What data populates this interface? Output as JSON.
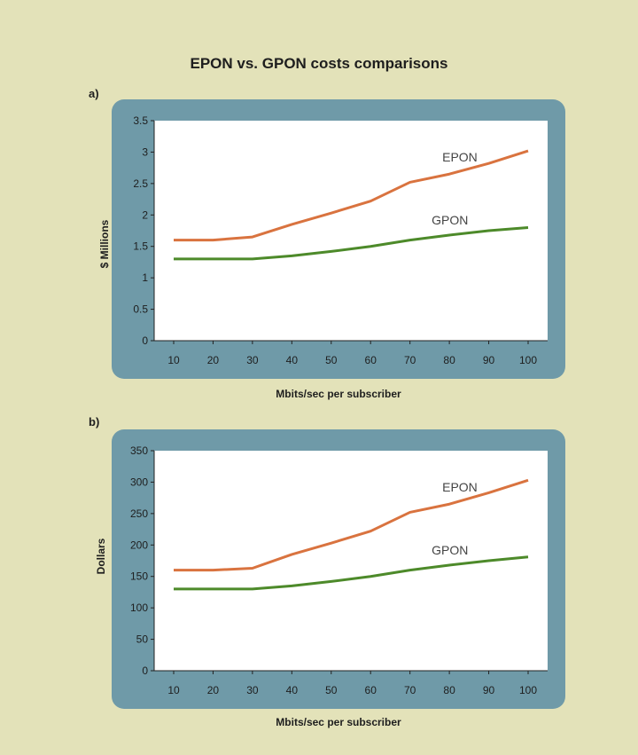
{
  "title": "EPON vs. GPON costs comparisons",
  "panels": [
    {
      "label": "a)"
    },
    {
      "label": "b)"
    }
  ],
  "colors": {
    "background": "#e3e2b9",
    "panel": "#6f9aa8",
    "plot": "#ffffff",
    "epon": "#d9733f",
    "gpon": "#4d8a2a"
  },
  "chart_data": [
    {
      "type": "line",
      "title": "",
      "xlabel": "Mbits/sec per subscriber",
      "ylabel": "$ Millions",
      "x": [
        10,
        20,
        30,
        40,
        50,
        60,
        70,
        80,
        90,
        100
      ],
      "ylim": [
        0,
        3.5
      ],
      "yticks": [
        "0",
        "0.5",
        "1",
        "1.5",
        "2",
        "2.5",
        "3",
        "3.5"
      ],
      "xticks": [
        "10",
        "20",
        "30",
        "40",
        "50",
        "60",
        "70",
        "80",
        "90",
        "100"
      ],
      "legend": "inline-labels",
      "series": [
        {
          "name": "EPON",
          "values": [
            1.6,
            1.6,
            1.65,
            1.85,
            2.03,
            2.22,
            2.52,
            2.65,
            2.82,
            3.02
          ]
        },
        {
          "name": "GPON",
          "values": [
            1.3,
            1.3,
            1.3,
            1.35,
            1.42,
            1.5,
            1.6,
            1.68,
            1.75,
            1.8
          ]
        }
      ]
    },
    {
      "type": "line",
      "title": "",
      "xlabel": "Mbits/sec per subscriber",
      "ylabel": "Dollars",
      "x": [
        10,
        20,
        30,
        40,
        50,
        60,
        70,
        80,
        90,
        100
      ],
      "ylim": [
        0,
        350
      ],
      "yticks": [
        "0",
        "50",
        "100",
        "150",
        "200",
        "250",
        "300",
        "350"
      ],
      "xticks": [
        "10",
        "20",
        "30",
        "40",
        "50",
        "60",
        "70",
        "80",
        "90",
        "100"
      ],
      "legend": "inline-labels",
      "series": [
        {
          "name": "EPON",
          "values": [
            160,
            160,
            163,
            185,
            203,
            222,
            252,
            265,
            283,
            303
          ]
        },
        {
          "name": "GPON",
          "values": [
            130,
            130,
            130,
            135,
            142,
            150,
            160,
            168,
            175,
            181
          ]
        }
      ]
    }
  ]
}
